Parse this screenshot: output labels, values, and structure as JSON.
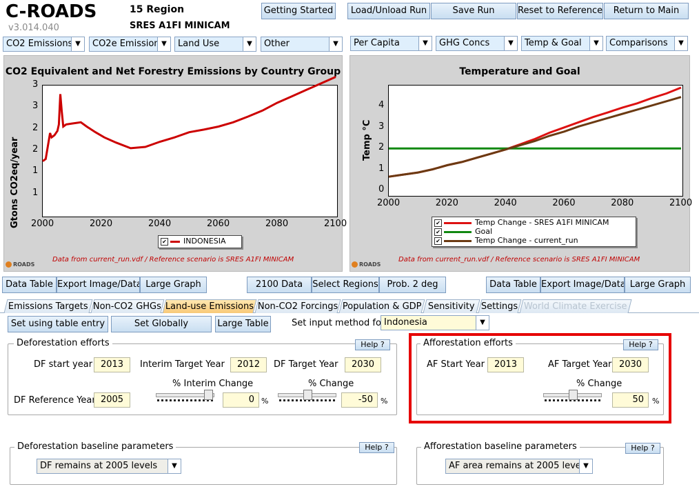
{
  "header": {
    "app_name": "C-ROADS",
    "version": "v3.014.040",
    "region": "15 Region",
    "scenario": "SRES A1FI MINICAM"
  },
  "toolbar": {
    "getting_started": "Getting Started",
    "load_unload": "Load/Unload Run",
    "save_run": "Save Run",
    "reset_reference": "Reset to Reference",
    "return_main": "Return to Main"
  },
  "left_dropdowns": [
    "CO2 Emissions",
    "CO2e Emissions",
    "Land Use",
    "Other"
  ],
  "right_dropdowns": [
    "Per Capita",
    "GHG Concs",
    "Temp & Goal",
    "Comparisons"
  ],
  "left_chart": {
    "title": "CO2 Equivalent and Net Forestry Emissions by Country Group",
    "ylabel": "Gtons CO2eq/year",
    "footnote": "Data from current_run.vdf / Reference scenario is SRES A1FI MINICAM",
    "logo": "ROADS"
  },
  "right_chart": {
    "title": "Temperature and Goal",
    "ylabel": "Temp °C",
    "footnote": "Data from current_run.vdf / Reference scenario is SRES A1FI MINICAM",
    "logo": "ROADS"
  },
  "chart_data": [
    {
      "type": "line",
      "title": "CO2 Equivalent and Net Forestry Emissions by Country Group",
      "ylabel": "Gtons CO2eq/year",
      "xlim": [
        2000,
        2100
      ],
      "ylim": [
        0.5,
        3.5
      ],
      "x_ticks": [
        "2000",
        "2020",
        "2040",
        "2060",
        "2080",
        "2100"
      ],
      "y_ticks": [
        {
          "v": 1,
          "label": "1"
        },
        {
          "v": 1.5,
          "label": "1"
        },
        {
          "v": 2,
          "label": "2"
        },
        {
          "v": 2.5,
          "label": "2"
        },
        {
          "v": 3,
          "label": "3"
        },
        {
          "v": 3.5,
          "label": "3"
        }
      ],
      "series": [
        {
          "name": "INDONESIA",
          "color": "#cc0000",
          "points": [
            [
              2000,
              1.75
            ],
            [
              2001,
              1.8
            ],
            [
              2002,
              2.2
            ],
            [
              2002.5,
              2.4
            ],
            [
              2003,
              2.3
            ],
            [
              2004,
              2.35
            ],
            [
              2005,
              2.45
            ],
            [
              2005.5,
              2.6
            ],
            [
              2006,
              3.3
            ],
            [
              2006.5,
              2.9
            ],
            [
              2007,
              2.55
            ],
            [
              2008,
              2.6
            ],
            [
              2010,
              2.62
            ],
            [
              2013,
              2.65
            ],
            [
              2015,
              2.55
            ],
            [
              2018,
              2.42
            ],
            [
              2021,
              2.3
            ],
            [
              2025,
              2.18
            ],
            [
              2030,
              2.05
            ],
            [
              2035,
              2.08
            ],
            [
              2040,
              2.2
            ],
            [
              2045,
              2.3
            ],
            [
              2050,
              2.42
            ],
            [
              2055,
              2.48
            ],
            [
              2060,
              2.55
            ],
            [
              2065,
              2.65
            ],
            [
              2070,
              2.78
            ],
            [
              2075,
              2.92
            ],
            [
              2080,
              3.1
            ],
            [
              2085,
              3.25
            ],
            [
              2090,
              3.4
            ],
            [
              2095,
              3.55
            ],
            [
              2100,
              3.7
            ]
          ]
        }
      ]
    },
    {
      "type": "line",
      "title": "Temperature and Goal",
      "ylabel": "Temp °C",
      "xlim": [
        2000,
        2100
      ],
      "ylim": [
        -0.2,
        5
      ],
      "x_ticks": [
        "2000",
        "2020",
        "2040",
        "2060",
        "2080",
        "2100"
      ],
      "y_ticks": [
        {
          "v": 0,
          "label": "0"
        },
        {
          "v": 1,
          "label": "1"
        },
        {
          "v": 2,
          "label": "2"
        },
        {
          "v": 3,
          "label": "3"
        },
        {
          "v": 4,
          "label": "4"
        }
      ],
      "series": [
        {
          "name": "Temp Change - SRES A1FI MINICAM",
          "color": "#dd1111",
          "points": [
            [
              2000,
              0.65
            ],
            [
              2005,
              0.75
            ],
            [
              2010,
              0.85
            ],
            [
              2015,
              1.0
            ],
            [
              2020,
              1.2
            ],
            [
              2025,
              1.35
            ],
            [
              2030,
              1.55
            ],
            [
              2035,
              1.75
            ],
            [
              2040,
              1.95
            ],
            [
              2045,
              2.2
            ],
            [
              2050,
              2.45
            ],
            [
              2055,
              2.75
            ],
            [
              2060,
              3.0
            ],
            [
              2065,
              3.25
            ],
            [
              2070,
              3.5
            ],
            [
              2075,
              3.72
            ],
            [
              2080,
              3.95
            ],
            [
              2085,
              4.15
            ],
            [
              2090,
              4.4
            ],
            [
              2095,
              4.62
            ],
            [
              2100,
              4.9
            ]
          ]
        },
        {
          "name": "Goal",
          "color": "#118811",
          "points": [
            [
              2000,
              2
            ],
            [
              2100,
              2
            ]
          ]
        },
        {
          "name": "Temp Change - current_run",
          "color": "#6b3a12",
          "points": [
            [
              2000,
              0.65
            ],
            [
              2005,
              0.75
            ],
            [
              2010,
              0.85
            ],
            [
              2015,
              1.0
            ],
            [
              2020,
              1.2
            ],
            [
              2025,
              1.35
            ],
            [
              2030,
              1.55
            ],
            [
              2035,
              1.75
            ],
            [
              2040,
              1.95
            ],
            [
              2045,
              2.15
            ],
            [
              2050,
              2.35
            ],
            [
              2055,
              2.6
            ],
            [
              2060,
              2.8
            ],
            [
              2065,
              3.05
            ],
            [
              2070,
              3.25
            ],
            [
              2075,
              3.45
            ],
            [
              2080,
              3.65
            ],
            [
              2085,
              3.85
            ],
            [
              2090,
              4.05
            ],
            [
              2095,
              4.25
            ],
            [
              2100,
              4.45
            ]
          ]
        }
      ]
    }
  ],
  "left_legend": {
    "label": "INDONESIA",
    "checked": "✔"
  },
  "right_legend": [
    {
      "label": "Temp Change - SRES A1FI MINICAM",
      "checked": "✔",
      "color": "#dd1111"
    },
    {
      "label": "Goal",
      "checked": "✔",
      "color": "#118811"
    },
    {
      "label": "Temp Change - current_run",
      "checked": "✔",
      "color": "#6b3a12"
    }
  ],
  "bottom_bar": {
    "data_table_left": "Data Table",
    "export_left": "Export Image/Data",
    "large_graph_left": "Large Graph",
    "data_2100": "2100 Data",
    "select_regions": "Select Regions",
    "prob_2deg": "Prob. 2 deg",
    "data_table_right": "Data Table",
    "export_right": "Export Image/Data",
    "large_graph_right": "Large Graph"
  },
  "tabs": [
    "Emissions Targets",
    "Non-CO2 GHGs",
    "Land-use Emissions",
    "Non-CO2 Forcings",
    "Population & GDP",
    "Sensitivity",
    "Settings",
    "World Climate Exercise"
  ],
  "controls": {
    "set_table_entry": "Set using table entry",
    "set_globally": "Set Globally",
    "large_table": "Large Table",
    "input_method_label": "Set input method for",
    "input_method_value": "Indonesia"
  },
  "deforestation": {
    "title": "Deforestation efforts",
    "help": "Help ?",
    "start_label": "DF start year",
    "start_value": "2013",
    "interim_label": "Interim Target Year",
    "interim_value": "2012",
    "target_label": "DF Target Year",
    "target_value": "2030",
    "interim_change_label": "% Interim Change",
    "change_label": "% Change",
    "ref_label": "DF Reference Year",
    "ref_value": "2005",
    "interim_change_value": "0",
    "change_value": "-50",
    "pct": "%",
    "interim_slider_level": 0.95,
    "change_slider_level": 0.5
  },
  "afforestation": {
    "title": "Afforestation efforts",
    "help": "Help ?",
    "start_label": "AF Start Year",
    "start_value": "2013",
    "target_label": "AF Target Year",
    "target_value": "2030",
    "change_label": "% Change",
    "change_value": "50",
    "pct": "%",
    "change_slider_level": 0.5
  },
  "df_baseline": {
    "title": "Deforestation baseline parameters",
    "help": "Help ?",
    "value": "DF remains at 2005 levels"
  },
  "af_baseline": {
    "title": "Afforestation baseline parameters",
    "help": "Help ?",
    "value": "AF area remains at 2005 levels"
  },
  "colors": {
    "highlight": "#e60000",
    "active_tab": "#f8c978"
  }
}
